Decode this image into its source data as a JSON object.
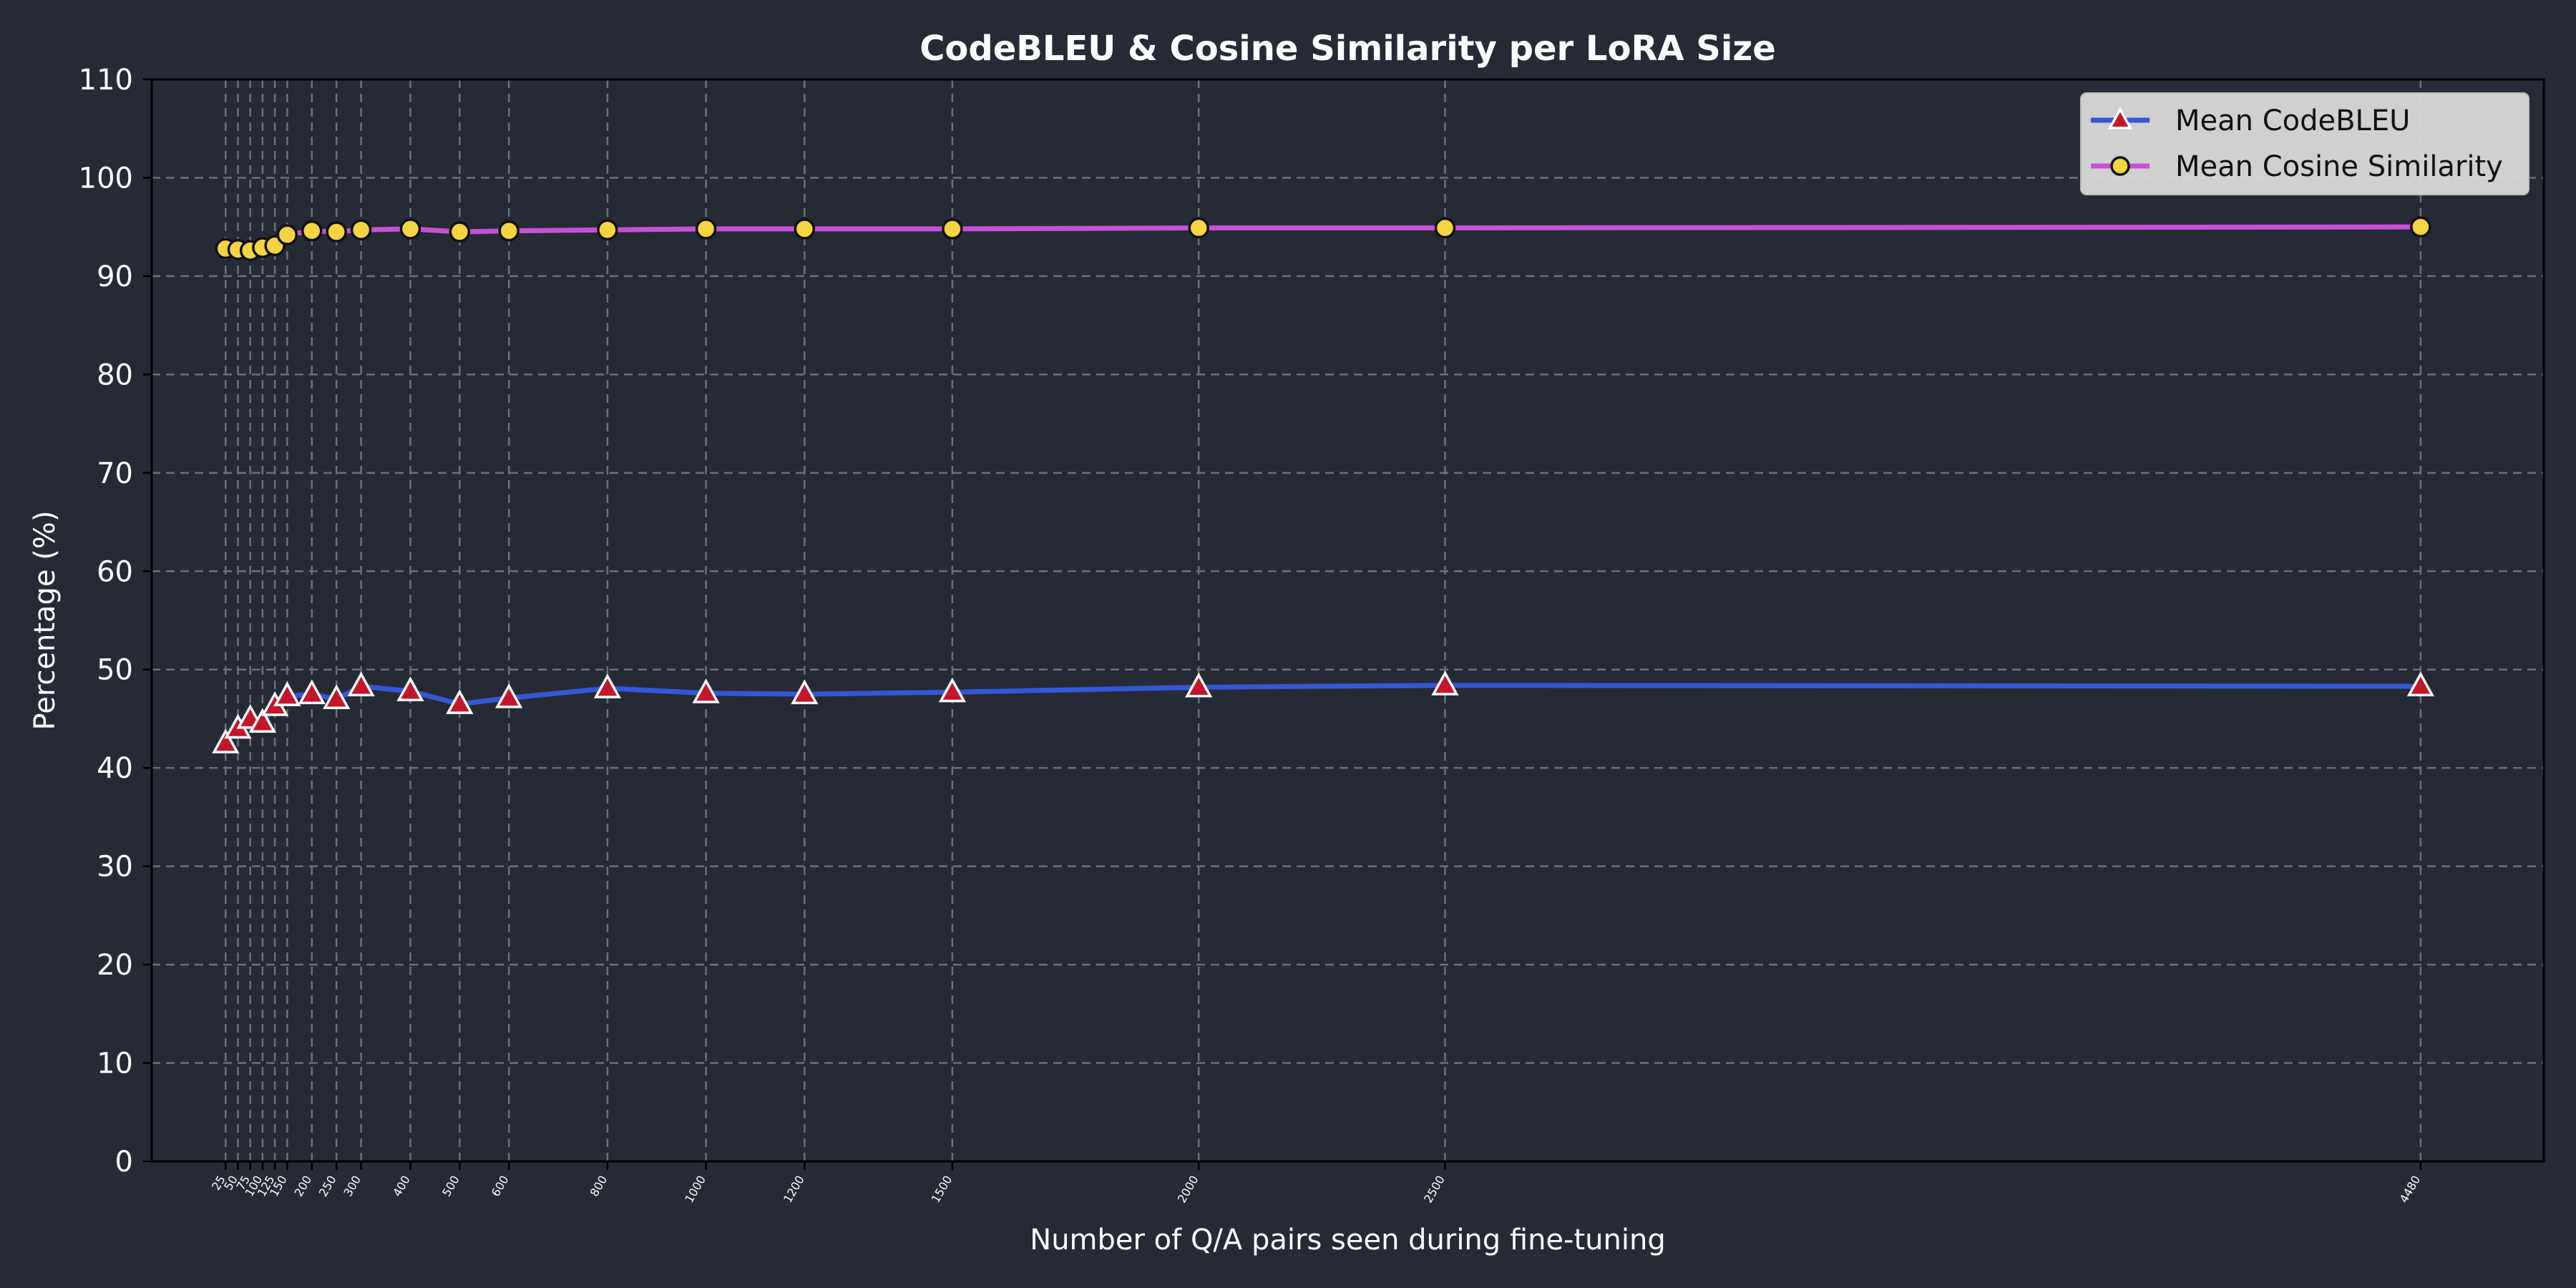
{
  "colors": {
    "background": "#262a35",
    "text": "#ffffff",
    "grid": "#6b6f78",
    "codebleu_line": "#3557d6",
    "codebleu_marker_fill": "#c4162a",
    "codebleu_marker_edge": "#ffffff",
    "cosine_line": "#c84fd8",
    "cosine_marker_fill": "#f5d442",
    "cosine_marker_edge": "#111111",
    "legend_bg": "#d9d9d9"
  },
  "chart_data": {
    "type": "line",
    "title": "CodeBLEU & Cosine Similarity per LoRA Size",
    "xlabel": "Number of Q/A pairs seen during fine-tuning",
    "ylabel": "Percentage (%)",
    "ylim": [
      0,
      110
    ],
    "yticks": [
      "0",
      "10",
      "20",
      "30",
      "40",
      "50",
      "60",
      "70",
      "80",
      "90",
      "100",
      "110"
    ],
    "x": [
      25,
      50,
      75,
      100,
      125,
      150,
      200,
      250,
      300,
      400,
      500,
      600,
      800,
      1000,
      1200,
      1500,
      2000,
      2500,
      4480
    ],
    "xtick_labels": [
      "25",
      "50",
      "75",
      "100",
      "125",
      "150",
      "200",
      "250",
      "300",
      "400",
      "500",
      "600",
      "800",
      "1000",
      "1200",
      "1500",
      "2000",
      "2500",
      "4480"
    ],
    "grid": true,
    "legend_position": "top-right",
    "series": [
      {
        "name": "Mean CodeBLEU",
        "marker": "triangle",
        "values": [
          42.5,
          44.0,
          45.0,
          44.6,
          46.3,
          47.3,
          47.5,
          47.0,
          48.3,
          47.8,
          46.5,
          47.1,
          48.1,
          47.6,
          47.5,
          47.7,
          48.2,
          48.4,
          48.3
        ]
      },
      {
        "name": "Mean Cosine Similarity",
        "marker": "circle",
        "values": [
          92.8,
          92.7,
          92.6,
          92.9,
          93.1,
          94.2,
          94.6,
          94.5,
          94.7,
          94.8,
          94.5,
          94.6,
          94.7,
          94.8,
          94.8,
          94.8,
          94.9,
          94.9,
          95.0
        ]
      }
    ]
  }
}
